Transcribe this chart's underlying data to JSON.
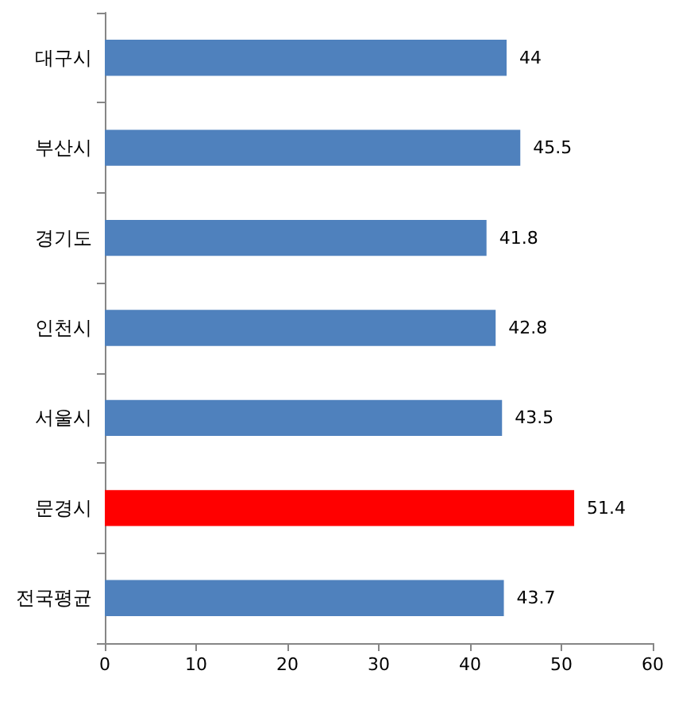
{
  "chart_data": {
    "type": "bar",
    "orientation": "horizontal",
    "categories": [
      "대구시",
      "부산시",
      "경기도",
      "인천시",
      "서울시",
      "문경시",
      "전국평균"
    ],
    "values": [
      44,
      45.5,
      41.8,
      42.8,
      43.5,
      51.4,
      43.7
    ],
    "colors": [
      "#4f81bd",
      "#4f81bd",
      "#4f81bd",
      "#4f81bd",
      "#4f81bd",
      "#ff0000",
      "#4f81bd"
    ],
    "xlim": [
      0,
      60
    ],
    "xticks": [
      0,
      10,
      20,
      30,
      40,
      50,
      60
    ],
    "data_labels": true
  }
}
